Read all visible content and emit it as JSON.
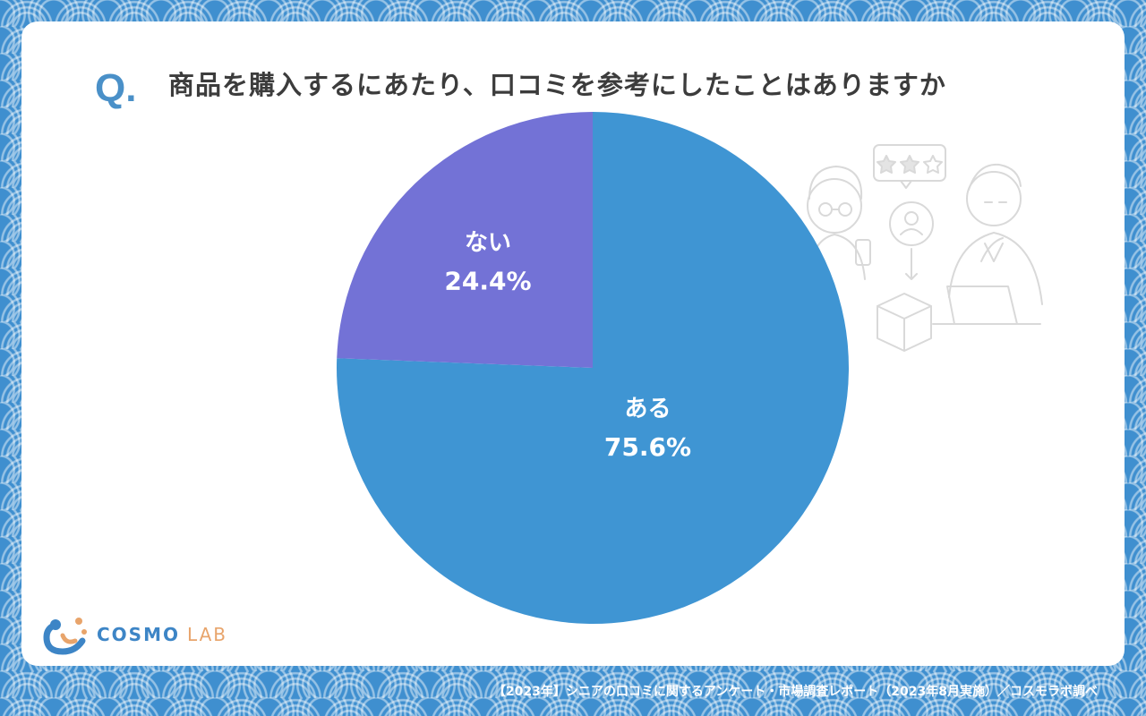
{
  "question": {
    "mark": "Q.",
    "text": "商品を購入するにあたり、口コミを参考にしたことはありますか"
  },
  "chart_data": {
    "type": "pie",
    "title": "商品を購入するにあたり、口コミを参考にしたことはありますか",
    "slices": [
      {
        "label": "ある",
        "value": 75.6,
        "display": "75.6%",
        "color": "#3f95d3"
      },
      {
        "label": "ない",
        "value": 24.4,
        "display": "24.4%",
        "color": "#7372d6"
      }
    ],
    "legend": "none"
  },
  "logo": {
    "primary": "COSMO",
    "secondary": "LAB"
  },
  "footer": "【2023年】シニアの口コミに関するアンケート・市場調査レポート（2023年8月実施）／コスモラボ調べ"
}
